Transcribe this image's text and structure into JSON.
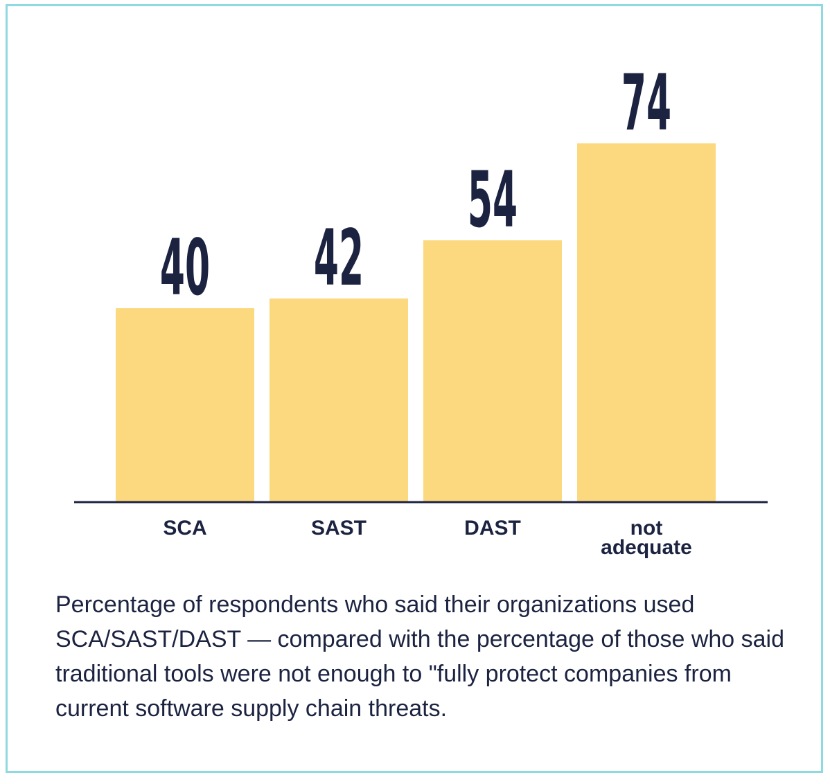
{
  "chart_data": {
    "type": "bar",
    "categories": [
      "SCA",
      "SAST",
      "DAST",
      "not adequate"
    ],
    "values": [
      40,
      42,
      54,
      74
    ],
    "title": "",
    "xlabel": "",
    "ylabel": "",
    "bar_color": "#fcd97e",
    "text_color": "#1c2341",
    "axis_color": "#1c2341",
    "grid": false,
    "legend": false
  },
  "caption": "Percentage of respondents who said their organizations used SCA/SAST/DAST — compared with the percentage of those who said traditional tools were not enough to \"fully protect companies from current software supply chain threats.",
  "frame_color": "#8fd9e0"
}
